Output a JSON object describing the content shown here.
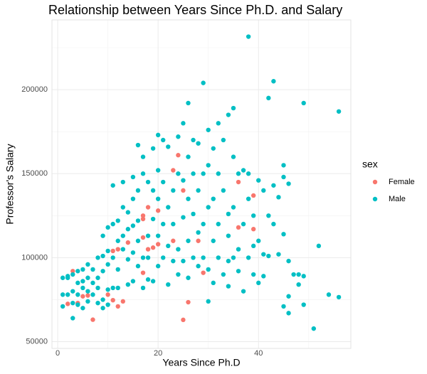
{
  "chart_data": {
    "type": "scatter",
    "title": "Relationship between Years Since Ph.D. and Salary",
    "x_label": "Years Since Ph.D",
    "y_label": "Professor's Salary",
    "legend_title": "sex",
    "legend_position": "right",
    "grid": true,
    "xlim": [
      -1.15,
      58.4
    ],
    "xticks": [
      0,
      20,
      40
    ],
    "ylim": [
      46000,
      241500
    ],
    "yticks": [
      50000,
      100000,
      150000,
      200000
    ],
    "series": [
      {
        "name": "Female",
        "color": "#F8766D",
        "x": [
          2,
          3,
          4,
          5,
          6,
          7,
          10,
          11,
          12,
          13,
          12,
          14,
          17,
          17,
          17,
          17,
          18,
          18,
          20,
          20,
          23,
          23,
          24,
          25,
          25,
          26,
          28,
          29,
          36,
          36,
          39,
          39,
          19,
          11
        ],
        "values": [
          72500,
          92000,
          73000,
          77000,
          77500,
          63100,
          78000,
          74700,
          71000,
          74000,
          105000,
          109000,
          91000,
          112000,
          125000,
          123000,
          105000,
          130000,
          128000,
          108000,
          152000,
          110000,
          161000,
          140000,
          63000,
          73500,
          110000,
          91000,
          145000,
          118000,
          137000,
          117000,
          106000,
          104000
        ]
      },
      {
        "name": "Male",
        "color": "#00BFC4",
        "x": [
          1,
          1,
          1,
          2,
          2,
          2,
          3,
          3,
          3,
          3,
          4,
          4,
          4,
          4,
          5,
          5,
          5,
          5,
          6,
          6,
          6,
          6,
          7,
          7,
          7,
          8,
          8,
          8,
          8,
          9,
          9,
          9,
          9,
          9,
          10,
          10,
          10,
          10,
          10,
          11,
          11,
          11,
          11,
          12,
          12,
          12,
          12,
          13,
          13,
          13,
          13,
          14,
          14,
          14,
          14,
          15,
          15,
          15,
          15,
          15,
          16,
          16,
          16,
          16,
          16,
          17,
          17,
          17,
          17,
          18,
          18,
          18,
          18,
          19,
          19,
          19,
          19,
          20,
          20,
          20,
          20,
          20,
          21,
          21,
          21,
          21,
          22,
          22,
          22,
          22,
          23,
          23,
          23,
          24,
          24,
          24,
          24,
          25,
          25,
          25,
          25,
          26,
          26,
          26,
          26,
          26,
          27,
          27,
          27,
          27,
          28,
          28,
          28,
          28,
          29,
          29,
          29,
          29,
          30,
          30,
          30,
          30,
          30,
          31,
          31,
          31,
          31,
          32,
          32,
          32,
          32,
          33,
          33,
          33,
          34,
          34,
          34,
          34,
          34,
          35,
          35,
          35,
          35,
          36,
          36,
          36,
          37,
          37,
          37,
          38,
          38,
          38,
          38,
          39,
          39,
          39,
          40,
          40,
          40,
          41,
          41,
          41,
          42,
          42,
          42,
          43,
          43,
          43,
          44,
          44,
          45,
          45,
          45,
          45,
          46,
          46,
          46,
          46,
          47,
          48,
          48,
          49,
          49,
          49,
          51,
          52,
          54,
          56,
          56
        ],
        "values": [
          88000,
          78000,
          71000,
          89000,
          78000,
          88000,
          64000,
          73000,
          80000,
          90000,
          78000,
          85000,
          92000,
          72000,
          82000,
          93000,
          70000,
          86000,
          80000,
          88000,
          96000,
          74000,
          78000,
          85000,
          93000,
          73000,
          82000,
          88000,
          100000,
          75000,
          92000,
          101000,
          113000,
          70000,
          81000,
          96000,
          104000,
          118000,
          72000,
          82000,
          143000,
          100000,
          120000,
          82000,
          110000,
          122000,
          93000,
          113000,
          105000,
          130000,
          145000,
          84000,
          99000,
          117000,
          127000,
          103000,
          119000,
          135000,
          148000,
          86000,
          95000,
          110000,
          140000,
          167000,
          122000,
          100000,
          150000,
          160000,
          82000,
          87000,
          113000,
          145000,
          100000,
          123000,
          165000,
          86000,
          140000,
          152000,
          173000,
          113000,
          95000,
          135000,
          100000,
          120000,
          145000,
          170000,
          84000,
          107000,
          130000,
          166000,
          98000,
          120000,
          140000,
          90000,
          105000,
          150000,
          172000,
          98000,
          124000,
          146000,
          180000,
          88000,
          110000,
          135000,
          192000,
          160000,
          100000,
          126000,
          150000,
          170000,
          95000,
          115000,
          140000,
          168000,
          204000,
          150000,
          120000,
          100000,
          74000,
          93000,
          130000,
          176000,
          155000,
          110000,
          135000,
          165000,
          85000,
          100000,
          120000,
          150000,
          180000,
          90000,
          140000,
          170000,
          98000,
          113000,
          126000,
          185000,
          83000,
          189000,
          100000,
          130000,
          160000,
          92000,
          105000,
          150000,
          80000,
          120000,
          152000,
          231545,
          100000,
          135000,
          150000,
          90000,
          125000,
          107000,
          110000,
          146000,
          85000,
          89000,
          140000,
          102000,
          195000,
          125000,
          101000,
          205000,
          143000,
          120000,
          102000,
          136000,
          71000,
          114000,
          148000,
          155000,
          67000,
          77000,
          98000,
          144000,
          90000,
          90000,
          84000,
          192000,
          72000,
          89000,
          57800,
          107000,
          78000,
          187000,
          76500
        ]
      }
    ]
  }
}
